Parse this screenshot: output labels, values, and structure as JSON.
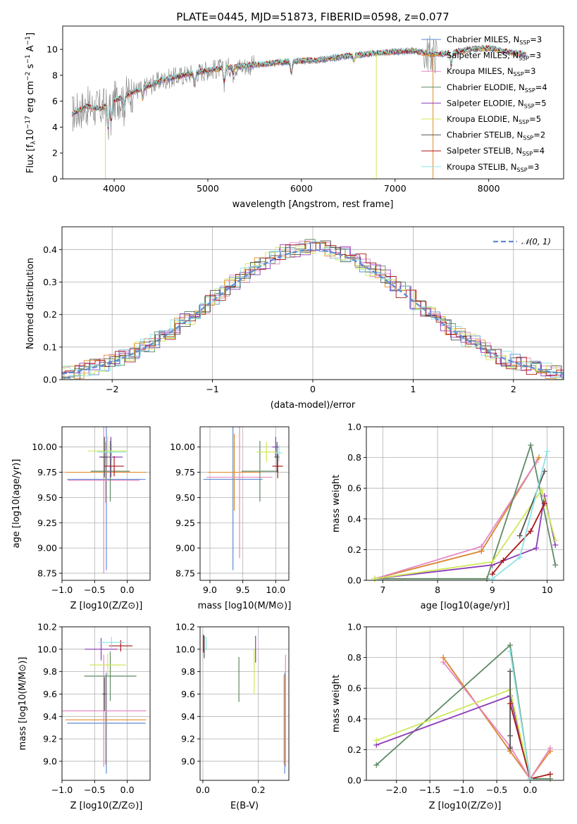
{
  "title": "PLATE=0445, MJD=51873, FIBERID=0598, z=0.077",
  "colors": {
    "Chabrier MILES": "#5b8bd4",
    "Salpeter MILES": "#e58a2b",
    "Kroupa MILES": "#e489c3",
    "Chabrier ELODIE": "#5e8a64",
    "Salpeter ELODIE": "#8f3bb8",
    "Kroupa ELODIE": "#cfe859",
    "Chabrier STELIB": "#545454",
    "Salpeter STELIB": "#a81717",
    "Kroupa STELIB": "#8ee3e5",
    "data": "#808080"
  },
  "chart_data": [
    {
      "id": "spectrum",
      "type": "line",
      "title": "PLATE=0445, MJD=51873, FIBERID=0598, z=0.077",
      "xlabel": "wavelength [Angstrom, rest frame]",
      "ylabel": "Flux [f_λ 10^-17 erg cm^-2 s^-1 A^-1]",
      "xlim": [
        3450,
        8800
      ],
      "ylim": [
        0,
        11.8
      ],
      "xticks": [
        4000,
        5000,
        6000,
        7000,
        8000
      ],
      "yticks": [
        0,
        2,
        4,
        6,
        8,
        10
      ],
      "grid": false,
      "legend_position": "right",
      "legend": [
        "Chabrier MILES, N_SSP=3",
        "Salpeter MILES, N_SSP=3",
        "Kroupa MILES, N_SSP=3",
        "Chabrier ELODIE, N_SSP=4",
        "Salpeter ELODIE, N_SSP=5",
        "Kroupa ELODIE, N_SSP=5",
        "Chabrier STELIB, N_SSP=2",
        "Salpeter STELIB, N_SSP=4",
        "Kroupa STELIB, N_SSP=3"
      ],
      "continuum_points": {
        "x": [
          3550,
          3700,
          3850,
          4000,
          4200,
          4500,
          4800,
          5000,
          5200,
          5500,
          5800,
          6000,
          6200,
          6500,
          6800,
          7000,
          7200,
          7400,
          7600,
          7800,
          8000,
          8200,
          8400
        ],
        "y": [
          5.0,
          5.6,
          5.4,
          6.0,
          6.7,
          7.6,
          8.1,
          8.4,
          8.6,
          8.8,
          9.0,
          9.1,
          9.2,
          9.5,
          9.7,
          9.8,
          9.9,
          9.6,
          9.7,
          10.0,
          10.1,
          9.8,
          9.6
        ]
      }
    },
    {
      "id": "residuals",
      "type": "histogram",
      "xlabel": "(data-model)/error",
      "ylabel": "Normed distribution",
      "xlim": [
        -2.5,
        2.5
      ],
      "ylim": [
        0,
        0.47
      ],
      "xticks": [
        -2,
        -1,
        0,
        1,
        2
      ],
      "yticks": [
        0.0,
        0.1,
        0.2,
        0.3,
        0.4
      ],
      "grid": true,
      "legend": [
        "N(0, 1)"
      ],
      "legend_position": "top-right"
    },
    {
      "id": "age_vs_Z",
      "type": "errorbar",
      "xlabel": "Z [log10(Z/Z⊙)]",
      "ylabel": "age  [log10(age/yr)]",
      "xlim": [
        -1.0,
        0.35
      ],
      "ylim": [
        8.68,
        10.2
      ],
      "xticks": [
        -1.0,
        -0.5,
        0.0
      ],
      "yticks": [
        8.75,
        9.0,
        9.25,
        9.5,
        9.75,
        10.0
      ],
      "grid": true,
      "points": [
        {
          "series": "Chabrier MILES",
          "x": -0.32,
          "y": 9.68,
          "xerr": 0.6,
          "yerr": 0.9
        },
        {
          "series": "Salpeter MILES",
          "x": -0.33,
          "y": 9.75,
          "xerr": 0.62,
          "yerr": 0.3
        },
        {
          "series": "Kroupa MILES",
          "x": -0.36,
          "y": 9.67,
          "xerr": 0.55,
          "yerr": 0.92
        },
        {
          "series": "Chabrier ELODIE",
          "x": -0.26,
          "y": 9.76,
          "xerr": 0.3,
          "yerr": 0.3
        },
        {
          "series": "Salpeter ELODIE",
          "x": -0.25,
          "y": 9.9,
          "xerr": 0.18,
          "yerr": 0.2
        },
        {
          "series": "Kroupa ELODIE",
          "x": -0.3,
          "y": 9.96,
          "xerr": 0.3,
          "yerr": 0.15
        },
        {
          "series": "Chabrier STELIB",
          "x": -0.35,
          "y": 9.9,
          "xerr": 0.05,
          "yerr": 0.2
        },
        {
          "series": "Salpeter STELIB",
          "x": -0.2,
          "y": 9.81,
          "xerr": 0.15,
          "yerr": 0.1
        },
        {
          "series": "Kroupa STELIB",
          "x": -0.24,
          "y": 9.95,
          "xerr": 0.22,
          "yerr": 0.08
        }
      ]
    },
    {
      "id": "age_vs_mass",
      "type": "errorbar",
      "xlabel": "mass [log10(M/M⊙)]",
      "xlim": [
        8.85,
        10.2
      ],
      "ylim": [
        8.68,
        10.2
      ],
      "xticks": [
        9.0,
        9.5,
        10.0
      ],
      "yticks": [
        8.75,
        9.0,
        9.25,
        9.5,
        9.75,
        10.0
      ],
      "grid": true,
      "points": [
        {
          "series": "Chabrier MILES",
          "x": 9.35,
          "y": 9.68,
          "xerr": 0.45,
          "yerr": 0.9
        },
        {
          "series": "Salpeter MILES",
          "x": 9.37,
          "y": 9.75,
          "xerr": 0.4,
          "yerr": 0.38
        },
        {
          "series": "Kroupa MILES",
          "x": 9.45,
          "y": 9.7,
          "xerr": 0.5,
          "yerr": 0.8
        },
        {
          "series": "Chabrier ELODIE",
          "x": 9.76,
          "y": 9.76,
          "xerr": 0.28,
          "yerr": 0.3
        },
        {
          "series": "Salpeter ELODIE",
          "x": 10.0,
          "y": 10.0,
          "xerr": 0.05,
          "yerr": 0.1
        },
        {
          "series": "Kroupa ELODIE",
          "x": 9.86,
          "y": 9.95,
          "xerr": 0.15,
          "yerr": 0.1
        },
        {
          "series": "Chabrier STELIB",
          "x": 10.02,
          "y": 9.9,
          "xerr": 0.04,
          "yerr": 0.15
        },
        {
          "series": "Salpeter STELIB",
          "x": 10.03,
          "y": 9.81,
          "xerr": 0.08,
          "yerr": 0.12
        },
        {
          "series": "Kroupa STELIB",
          "x": 10.05,
          "y": 9.94,
          "xerr": 0.05,
          "yerr": 0.08
        }
      ]
    },
    {
      "id": "massweight_vs_age",
      "type": "line",
      "xlabel": "age  [log10(age/yr)]",
      "ylabel": "mass weight",
      "xlim": [
        6.7,
        10.3
      ],
      "ylim": [
        0,
        1.0
      ],
      "xticks": [
        7,
        8,
        9,
        10
      ],
      "yticks": [
        0.0,
        0.2,
        0.4,
        0.6,
        0.8,
        1.0
      ],
      "grid": true,
      "series": [
        {
          "series": "Chabrier MILES",
          "x": [
            6.85,
            8.8,
            9.85
          ],
          "y": [
            0.01,
            0.19,
            0.8
          ]
        },
        {
          "series": "Salpeter MILES",
          "x": [
            6.85,
            8.8,
            9.85
          ],
          "y": [
            0.01,
            0.19,
            0.8
          ]
        },
        {
          "series": "Kroupa MILES",
          "x": [
            6.85,
            8.8,
            9.8
          ],
          "y": [
            0.01,
            0.22,
            0.77
          ]
        },
        {
          "series": "Chabrier ELODIE",
          "x": [
            6.85,
            8.9,
            9.7,
            10.15
          ],
          "y": [
            0.01,
            0.01,
            0.88,
            0.1
          ]
        },
        {
          "series": "Salpeter ELODIE",
          "x": [
            6.85,
            9.0,
            9.8,
            9.95,
            10.15
          ],
          "y": [
            0.01,
            0.1,
            0.21,
            0.55,
            0.23
          ]
        },
        {
          "series": "Kroupa ELODIE",
          "x": [
            6.85,
            9.0,
            9.9,
            10.15
          ],
          "y": [
            0.01,
            0.12,
            0.59,
            0.26
          ]
        },
        {
          "series": "Chabrier STELIB",
          "x": [
            9.5,
            9.95
          ],
          "y": [
            0.29,
            0.71
          ]
        },
        {
          "series": "Salpeter STELIB",
          "x": [
            9.0,
            9.2,
            9.7,
            9.95
          ],
          "y": [
            0.04,
            0.13,
            0.32,
            0.5
          ]
        },
        {
          "series": "Kroupa STELIB",
          "x": [
            9.0,
            9.5,
            10.0
          ],
          "y": [
            0.01,
            0.15,
            0.84
          ]
        }
      ]
    },
    {
      "id": "mass_vs_Z",
      "type": "errorbar",
      "xlabel": "Z [log10(Z/Z⊙)]",
      "ylabel": "mass [log10(M/M⊙)]",
      "xlim": [
        -1.0,
        0.35
      ],
      "ylim": [
        8.83,
        10.2
      ],
      "xticks": [
        -1.0,
        -0.5,
        0.0
      ],
      "yticks": [
        9.0,
        9.2,
        9.4,
        9.6,
        9.8,
        10.0,
        10.2
      ],
      "grid": true,
      "points": [
        {
          "series": "Chabrier MILES",
          "x": -0.32,
          "y": 9.34,
          "xerr": 0.6,
          "yerr": 0.45
        },
        {
          "series": "Salpeter MILES",
          "x": -0.33,
          "y": 9.37,
          "xerr": 0.62,
          "yerr": 0.4
        },
        {
          "series": "Kroupa MILES",
          "x": -0.36,
          "y": 9.45,
          "xerr": 0.65,
          "yerr": 0.5
        },
        {
          "series": "Chabrier ELODIE",
          "x": -0.26,
          "y": 9.76,
          "xerr": 0.4,
          "yerr": 0.22
        },
        {
          "series": "Salpeter ELODIE",
          "x": -0.4,
          "y": 10.0,
          "xerr": 0.25,
          "yerr": 0.1
        },
        {
          "series": "Kroupa ELODIE",
          "x": -0.3,
          "y": 9.86,
          "xerr": 0.28,
          "yerr": 0.1
        },
        {
          "series": "Chabrier STELIB",
          "x": -0.35,
          "y": 9.6,
          "xerr": 0.03,
          "yerr": 0.15
        },
        {
          "series": "Salpeter STELIB",
          "x": -0.1,
          "y": 10.03,
          "xerr": 0.18,
          "yerr": 0.05
        },
        {
          "series": "Kroupa STELIB",
          "x": -0.24,
          "y": 10.06,
          "xerr": 0.2,
          "yerr": 0.05
        }
      ]
    },
    {
      "id": "mass_vs_EBV",
      "type": "errorbar",
      "xlabel": "E(B-V)",
      "xlim": [
        -0.01,
        0.31
      ],
      "ylim": [
        8.83,
        10.2
      ],
      "xticks": [
        0.0,
        0.2
      ],
      "yticks": [
        9.0,
        9.2,
        9.4,
        9.6,
        9.8,
        10.0,
        10.2
      ],
      "grid": true,
      "points": [
        {
          "series": "Chabrier MILES",
          "x": 0.295,
          "y": 9.34,
          "yerr": 0.45
        },
        {
          "series": "Salpeter MILES",
          "x": 0.293,
          "y": 9.37,
          "yerr": 0.4
        },
        {
          "series": "Kroupa MILES",
          "x": 0.298,
          "y": 9.45,
          "yerr": 0.5
        },
        {
          "series": "Chabrier ELODIE",
          "x": 0.13,
          "y": 9.73,
          "yerr": 0.2
        },
        {
          "series": "Salpeter ELODIE",
          "x": 0.19,
          "y": 10.0,
          "yerr": 0.12
        },
        {
          "series": "Kroupa ELODIE",
          "x": 0.185,
          "y": 9.8,
          "yerr": 0.2
        },
        {
          "series": "Chabrier STELIB",
          "x": 0.005,
          "y": 10.02,
          "yerr": 0.1
        },
        {
          "series": "Salpeter STELIB",
          "x": 0.002,
          "y": 10.05,
          "yerr": 0.08
        },
        {
          "series": "Kroupa STELIB",
          "x": 0.012,
          "y": 10.05,
          "yerr": 0.06
        }
      ]
    },
    {
      "id": "massweight_vs_Z",
      "type": "line",
      "xlabel": "Z [log10(Z/Z⊙)]",
      "ylabel": "mass weight",
      "xlim": [
        -2.45,
        0.5
      ],
      "ylim": [
        0,
        1.0
      ],
      "xticks": [
        -2.0,
        -1.5,
        -1.0,
        -0.5,
        0.0
      ],
      "yticks": [
        0.0,
        0.2,
        0.4,
        0.6,
        0.8,
        1.0
      ],
      "grid": true,
      "series": [
        {
          "series": "Chabrier MILES",
          "x": [
            -1.3,
            -0.3,
            0.0
          ],
          "y": [
            0.8,
            0.19,
            0.01
          ]
        },
        {
          "series": "Salpeter MILES",
          "x": [
            -1.3,
            -0.3,
            0.0,
            0.3
          ],
          "y": [
            0.8,
            0.19,
            0.01,
            0.19
          ]
        },
        {
          "series": "Kroupa MILES",
          "x": [
            -1.3,
            -0.3,
            0.0,
            0.3
          ],
          "y": [
            0.77,
            0.22,
            0.01,
            0.21
          ]
        },
        {
          "series": "Chabrier ELODIE",
          "x": [
            -2.3,
            -0.3,
            0.0,
            0.3
          ],
          "y": [
            0.1,
            0.88,
            0.01,
            0.01
          ]
        },
        {
          "series": "Salpeter ELODIE",
          "x": [
            -2.3,
            -0.3,
            0.0
          ],
          "y": [
            0.23,
            0.55,
            0.01
          ]
        },
        {
          "series": "Kroupa ELODIE",
          "x": [
            -2.3,
            -0.3,
            0.0
          ],
          "y": [
            0.26,
            0.59,
            0.01
          ]
        },
        {
          "series": "Chabrier STELIB",
          "x": [
            -0.3,
            -0.3,
            -0.3
          ],
          "y": [
            0.71,
            0.29,
            0.21
          ]
        },
        {
          "series": "Salpeter STELIB",
          "x": [
            -0.3,
            0.0,
            0.3
          ],
          "y": [
            0.5,
            0.01,
            0.04
          ]
        },
        {
          "series": "Kroupa STELIB",
          "x": [
            -0.3,
            0.0
          ],
          "y": [
            0.84,
            0.01
          ]
        }
      ]
    }
  ]
}
